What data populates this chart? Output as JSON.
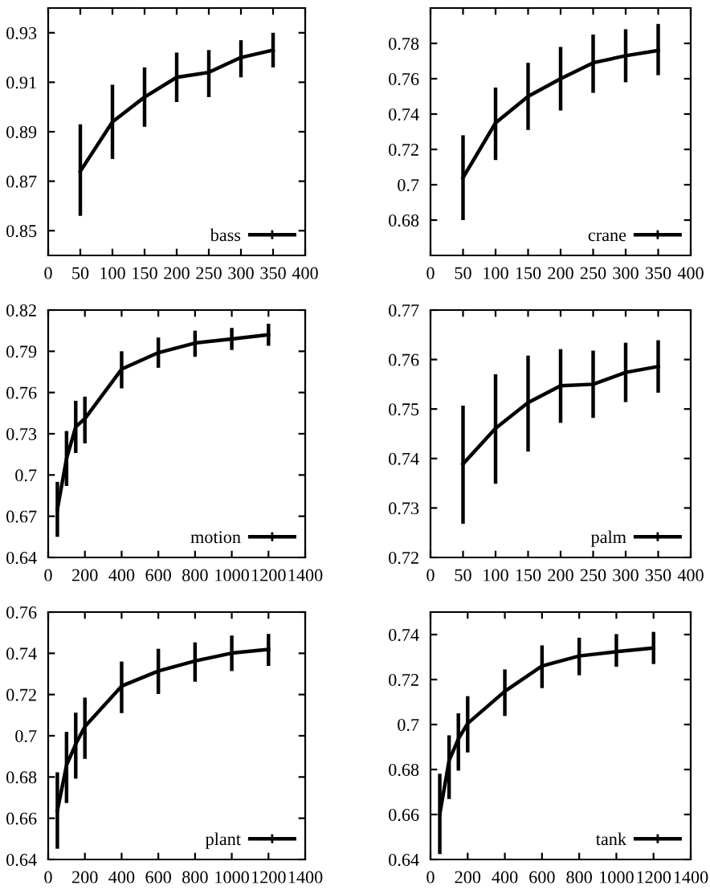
{
  "chart_data": [
    {
      "type": "line",
      "x": [
        50,
        100,
        150,
        200,
        250,
        300,
        350
      ],
      "series": [
        {
          "name": "bass",
          "color": "#000000",
          "values": [
            0.874,
            0.894,
            0.904,
            0.912,
            0.914,
            0.92,
            0.923
          ],
          "errors": [
            [
              0.856,
              0.893
            ],
            [
              0.879,
              0.909
            ],
            [
              0.892,
              0.916
            ],
            [
              0.902,
              0.922
            ],
            [
              0.904,
              0.923
            ],
            [
              0.912,
              0.927
            ],
            [
              0.916,
              0.93
            ]
          ]
        }
      ],
      "xlim": [
        0,
        400
      ],
      "xticks": [
        0,
        50,
        100,
        150,
        200,
        250,
        300,
        350,
        400
      ],
      "ylim": [
        0.84,
        0.94
      ],
      "yticks": [
        0.85,
        0.87,
        0.89,
        0.91,
        0.93
      ],
      "legend": "bottom right",
      "grid": false
    },
    {
      "type": "line",
      "x": [
        50,
        100,
        150,
        200,
        250,
        300,
        350
      ],
      "series": [
        {
          "name": "crane",
          "color": "#000000",
          "values": [
            0.704,
            0.735,
            0.75,
            0.76,
            0.769,
            0.773,
            0.776
          ],
          "errors": [
            [
              0.68,
              0.728
            ],
            [
              0.714,
              0.755
            ],
            [
              0.731,
              0.769
            ],
            [
              0.742,
              0.778
            ],
            [
              0.752,
              0.785
            ],
            [
              0.758,
              0.788
            ],
            [
              0.762,
              0.791
            ]
          ]
        }
      ],
      "xlim": [
        0,
        400
      ],
      "xticks": [
        0,
        50,
        100,
        150,
        200,
        250,
        300,
        350,
        400
      ],
      "ylim": [
        0.66,
        0.8
      ],
      "yticks": [
        0.68,
        0.7,
        0.72,
        0.74,
        0.76,
        0.78
      ],
      "legend": "bottom right",
      "grid": false
    },
    {
      "type": "line",
      "x": [
        50,
        100,
        150,
        200,
        400,
        600,
        800,
        1000,
        1200
      ],
      "series": [
        {
          "name": "motion",
          "color": "#000000",
          "values": [
            0.675,
            0.712,
            0.735,
            0.741,
            0.777,
            0.789,
            0.796,
            0.799,
            0.802
          ],
          "errors": [
            [
              0.655,
              0.695
            ],
            [
              0.692,
              0.732
            ],
            [
              0.716,
              0.754
            ],
            [
              0.723,
              0.757
            ],
            [
              0.763,
              0.79
            ],
            [
              0.778,
              0.8
            ],
            [
              0.786,
              0.805
            ],
            [
              0.791,
              0.807
            ],
            [
              0.794,
              0.81
            ]
          ]
        }
      ],
      "xlim": [
        0,
        1400
      ],
      "xticks": [
        0,
        200,
        400,
        600,
        800,
        1000,
        1200,
        1400
      ],
      "ylim": [
        0.64,
        0.82
      ],
      "yticks": [
        0.64,
        0.67,
        0.7,
        0.73,
        0.76,
        0.79,
        0.82
      ],
      "legend": "bottom right",
      "grid": false
    },
    {
      "type": "line",
      "x": [
        50,
        100,
        150,
        200,
        250,
        300,
        350
      ],
      "series": [
        {
          "name": "palm",
          "color": "#000000",
          "values": [
            0.7389,
            0.7461,
            0.7513,
            0.7547,
            0.755,
            0.7574,
            0.7586
          ],
          "errors": [
            [
              0.7268,
              0.7507
            ],
            [
              0.7349,
              0.757
            ],
            [
              0.7414,
              0.7608
            ],
            [
              0.7472,
              0.7621
            ],
            [
              0.7482,
              0.7618
            ],
            [
              0.7514,
              0.7634
            ],
            [
              0.7533,
              0.7639
            ]
          ]
        }
      ],
      "xlim": [
        0,
        400
      ],
      "xticks": [
        0,
        50,
        100,
        150,
        200,
        250,
        300,
        350,
        400
      ],
      "ylim": [
        0.72,
        0.77
      ],
      "yticks": [
        0.72,
        0.73,
        0.74,
        0.75,
        0.76,
        0.77
      ],
      "legend": "bottom right",
      "grid": false
    },
    {
      "type": "line",
      "x": [
        50,
        100,
        150,
        200,
        400,
        600,
        800,
        1000,
        1200
      ],
      "series": [
        {
          "name": "plant",
          "color": "#000000",
          "values": [
            0.6637,
            0.6857,
            0.696,
            0.7045,
            0.7241,
            0.7314,
            0.7363,
            0.7401,
            0.7419
          ],
          "errors": [
            [
              0.6452,
              0.6823
            ],
            [
              0.6674,
              0.7019
            ],
            [
              0.6792,
              0.7112
            ],
            [
              0.6888,
              0.7185
            ],
            [
              0.711,
              0.736
            ],
            [
              0.7203,
              0.7422
            ],
            [
              0.7262,
              0.7453
            ],
            [
              0.7314,
              0.7486
            ],
            [
              0.7339,
              0.7494
            ]
          ]
        }
      ],
      "xlim": [
        0,
        1400
      ],
      "xticks": [
        0,
        200,
        400,
        600,
        800,
        1000,
        1200,
        1400
      ],
      "ylim": [
        0.64,
        0.76
      ],
      "yticks": [
        0.64,
        0.66,
        0.68,
        0.7,
        0.72,
        0.74,
        0.76
      ],
      "legend": "bottom right",
      "grid": false
    },
    {
      "type": "line",
      "x": [
        50,
        100,
        150,
        200,
        400,
        600,
        800,
        1000,
        1200
      ],
      "series": [
        {
          "name": "tank",
          "color": "#000000",
          "values": [
            0.6602,
            0.684,
            0.6936,
            0.7005,
            0.7148,
            0.726,
            0.7305,
            0.7324,
            0.734
          ],
          "errors": [
            [
              0.6424,
              0.6781
            ],
            [
              0.6669,
              0.6952
            ],
            [
              0.6795,
              0.705
            ],
            [
              0.6876,
              0.7126
            ],
            [
              0.7038,
              0.7245
            ],
            [
              0.7162,
              0.7352
            ],
            [
              0.7219,
              0.7386
            ],
            [
              0.7257,
              0.7402
            ],
            [
              0.7269,
              0.7412
            ]
          ]
        }
      ],
      "xlim": [
        0,
        1400
      ],
      "xticks": [
        0,
        200,
        400,
        600,
        800,
        1000,
        1200,
        1400
      ],
      "ylim": [
        0.64,
        0.75
      ],
      "yticks": [
        0.64,
        0.66,
        0.68,
        0.7,
        0.72,
        0.74
      ],
      "legend": "bottom right",
      "grid": false
    }
  ]
}
